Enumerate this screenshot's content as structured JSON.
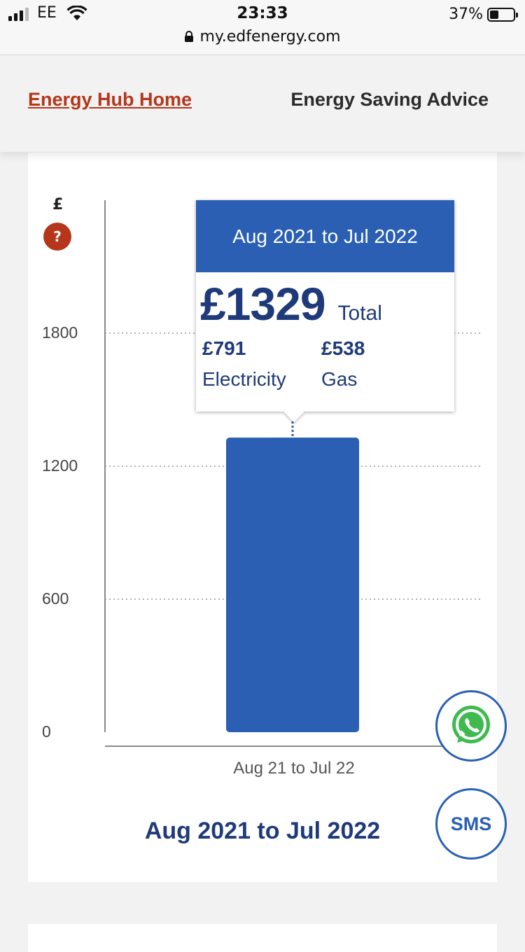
{
  "status_bar": {
    "carrier": "EE",
    "time": "23:33",
    "url": "my.edfenergy.com",
    "battery_percent": "37%",
    "battery_level": 0.37
  },
  "nav": {
    "home_label": "Energy Hub Home",
    "advice_label": "Energy Saving Advice"
  },
  "chart": {
    "currency_symbol": "£",
    "help_label": "?",
    "period_title": "Aug 2021 to Jul 2022"
  },
  "tooltip": {
    "title": "Aug 2021 to Jul 2022",
    "total_amount": "£1329",
    "total_label": "Total",
    "electricity_amount": "£791",
    "electricity_label": "Electricity",
    "gas_amount": "£538",
    "gas_label": "Gas"
  },
  "chart_data": {
    "type": "bar",
    "categories": [
      "Aug 21 to Jul 22"
    ],
    "values": [
      1329
    ],
    "ylabel": "£",
    "ylim": [
      0,
      2400
    ],
    "yticks": [
      "0",
      "600",
      "1200",
      "1800"
    ],
    "grid": true,
    "color": "#2a5fb4"
  },
  "contact": {
    "whatsapp_icon": "whatsapp-icon",
    "sms_label": "SMS"
  },
  "colors": {
    "brand_orange": "#b5361a",
    "brand_blue": "#2a5fb4",
    "text_blue": "#1f3a7a"
  }
}
